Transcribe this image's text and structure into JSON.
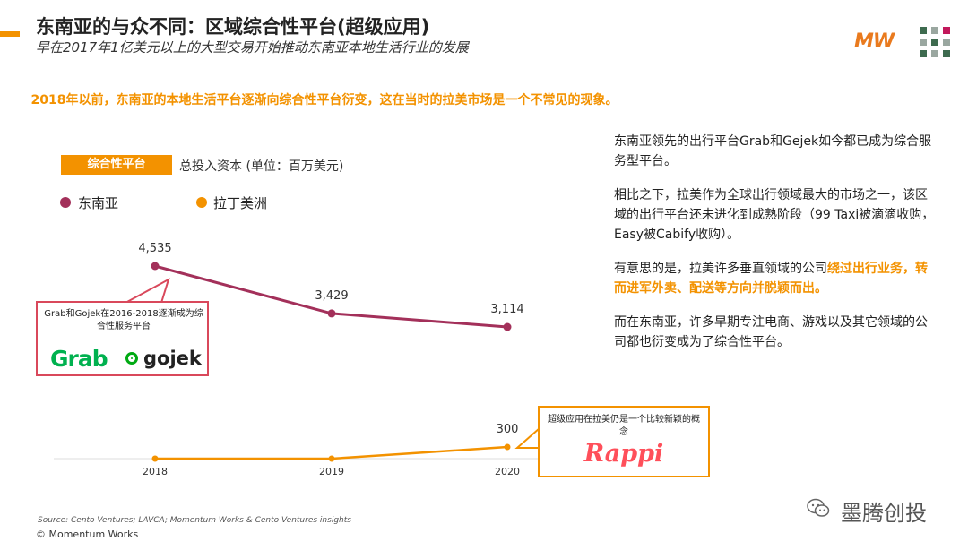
{
  "header": {
    "title": "东南亚的与众不同：区域综合性平台(超级应用)",
    "subtitle": "早在2017年1亿美元以上的大型交易开始推动东南亚本地生活行业的发展",
    "logo_text": "MW",
    "accent_color": "#f39200"
  },
  "orange_heading": "2018年以前，东南亚的本地生活平台逐渐向综合性平台衍变，这在当时的拉美市场是一个不常见的现象。",
  "badge": "综合性平台",
  "chart_description": "总投入资本 (单位：百万美元)",
  "legend": [
    {
      "label": "东南亚",
      "color": "#a3305a"
    },
    {
      "label": "拉丁美洲",
      "color": "#f39200"
    }
  ],
  "chart_data": {
    "type": "line",
    "title": "总投入资本 (单位：百万美元)",
    "categories": [
      "2018",
      "2019",
      "2020"
    ],
    "series": [
      {
        "name": "东南亚",
        "color": "#a3305a",
        "values": [
          4535,
          3429,
          3114
        ],
        "labels": [
          "4,535",
          "3,429",
          "3,114"
        ]
      },
      {
        "name": "拉丁美洲",
        "color": "#f39200",
        "values": [
          null,
          null,
          300
        ],
        "labels": [
          "",
          "",
          "300"
        ]
      }
    ],
    "xlabel": "",
    "ylabel": ""
  },
  "callout_grab": {
    "note": "Grab和Gojek在2016-2018逐渐成为综合性服务平台",
    "logo_grab": "Grab",
    "logo_gojek": "gojek"
  },
  "callout_rappi": {
    "note": "超级应用在拉美仍是一个比较新颖的概念",
    "logo_rappi": "Rappi"
  },
  "right_text": {
    "p1": "东南亚领先的出行平台Grab和Gejek如今都已成为综合服务型平台。",
    "p2": "相比之下，拉美作为全球出行领域最大的市场之一，该区域的出行平台还未进化到成熟阶段（99 Taxi被滴滴收购，Easy被Cabify收购）。",
    "p3_plain": "有意思的是，拉美许多垂直领域的公司",
    "p3_highlight": "绕过出行业务，转而进军外卖、配送等方向并脱颖而出。",
    "p4": "而在东南亚，许多早期专注电商、游戏以及其它领域的公司都也衍变成为了综合性平台。"
  },
  "footer": {
    "source": "Source: Cento Ventures; LAVCA; Momentum Works & Cento Ventures insights",
    "copyright": "© Momentum Works",
    "wechat_name": "墨腾创投"
  }
}
